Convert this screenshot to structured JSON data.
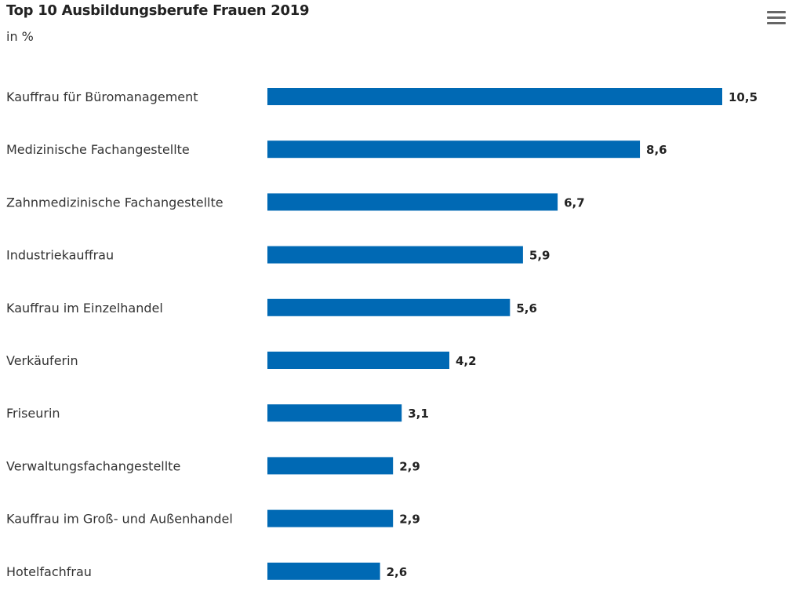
{
  "header": {
    "title": "Top 10 Ausbildungsberufe Frauen 2019",
    "subtitle": "in %",
    "menu_icon": "hamburger-menu-icon"
  },
  "colors": {
    "bar": "#0069b4",
    "text": "#333333"
  },
  "chart_data": {
    "type": "bar",
    "orientation": "horizontal",
    "title": "Top 10 Ausbildungsberufe Frauen 2019",
    "subtitle": "in %",
    "xlabel": "",
    "ylabel": "",
    "grid": false,
    "legend": "none",
    "xlim": [
      0,
      10.5
    ],
    "categories": [
      "Kauffrau für Büromanagement",
      "Medizinische Fachangestellte",
      "Zahnmedizinische Fachangestellte",
      "Industriekauffrau",
      "Kauffrau im Einzelhandel",
      "Verkäuferin",
      "Friseurin",
      "Verwaltungsfachangestellte",
      "Kauffrau im Groß- und Außenhandel",
      "Hotelfachfrau"
    ],
    "values": [
      10.5,
      8.6,
      6.7,
      5.9,
      5.6,
      4.2,
      3.1,
      2.9,
      2.9,
      2.6
    ],
    "data_labels": [
      "10,5",
      "8,6",
      "6,7",
      "5,9",
      "5,6",
      "4,2",
      "3,1",
      "2,9",
      "2,9",
      "2,6"
    ]
  }
}
